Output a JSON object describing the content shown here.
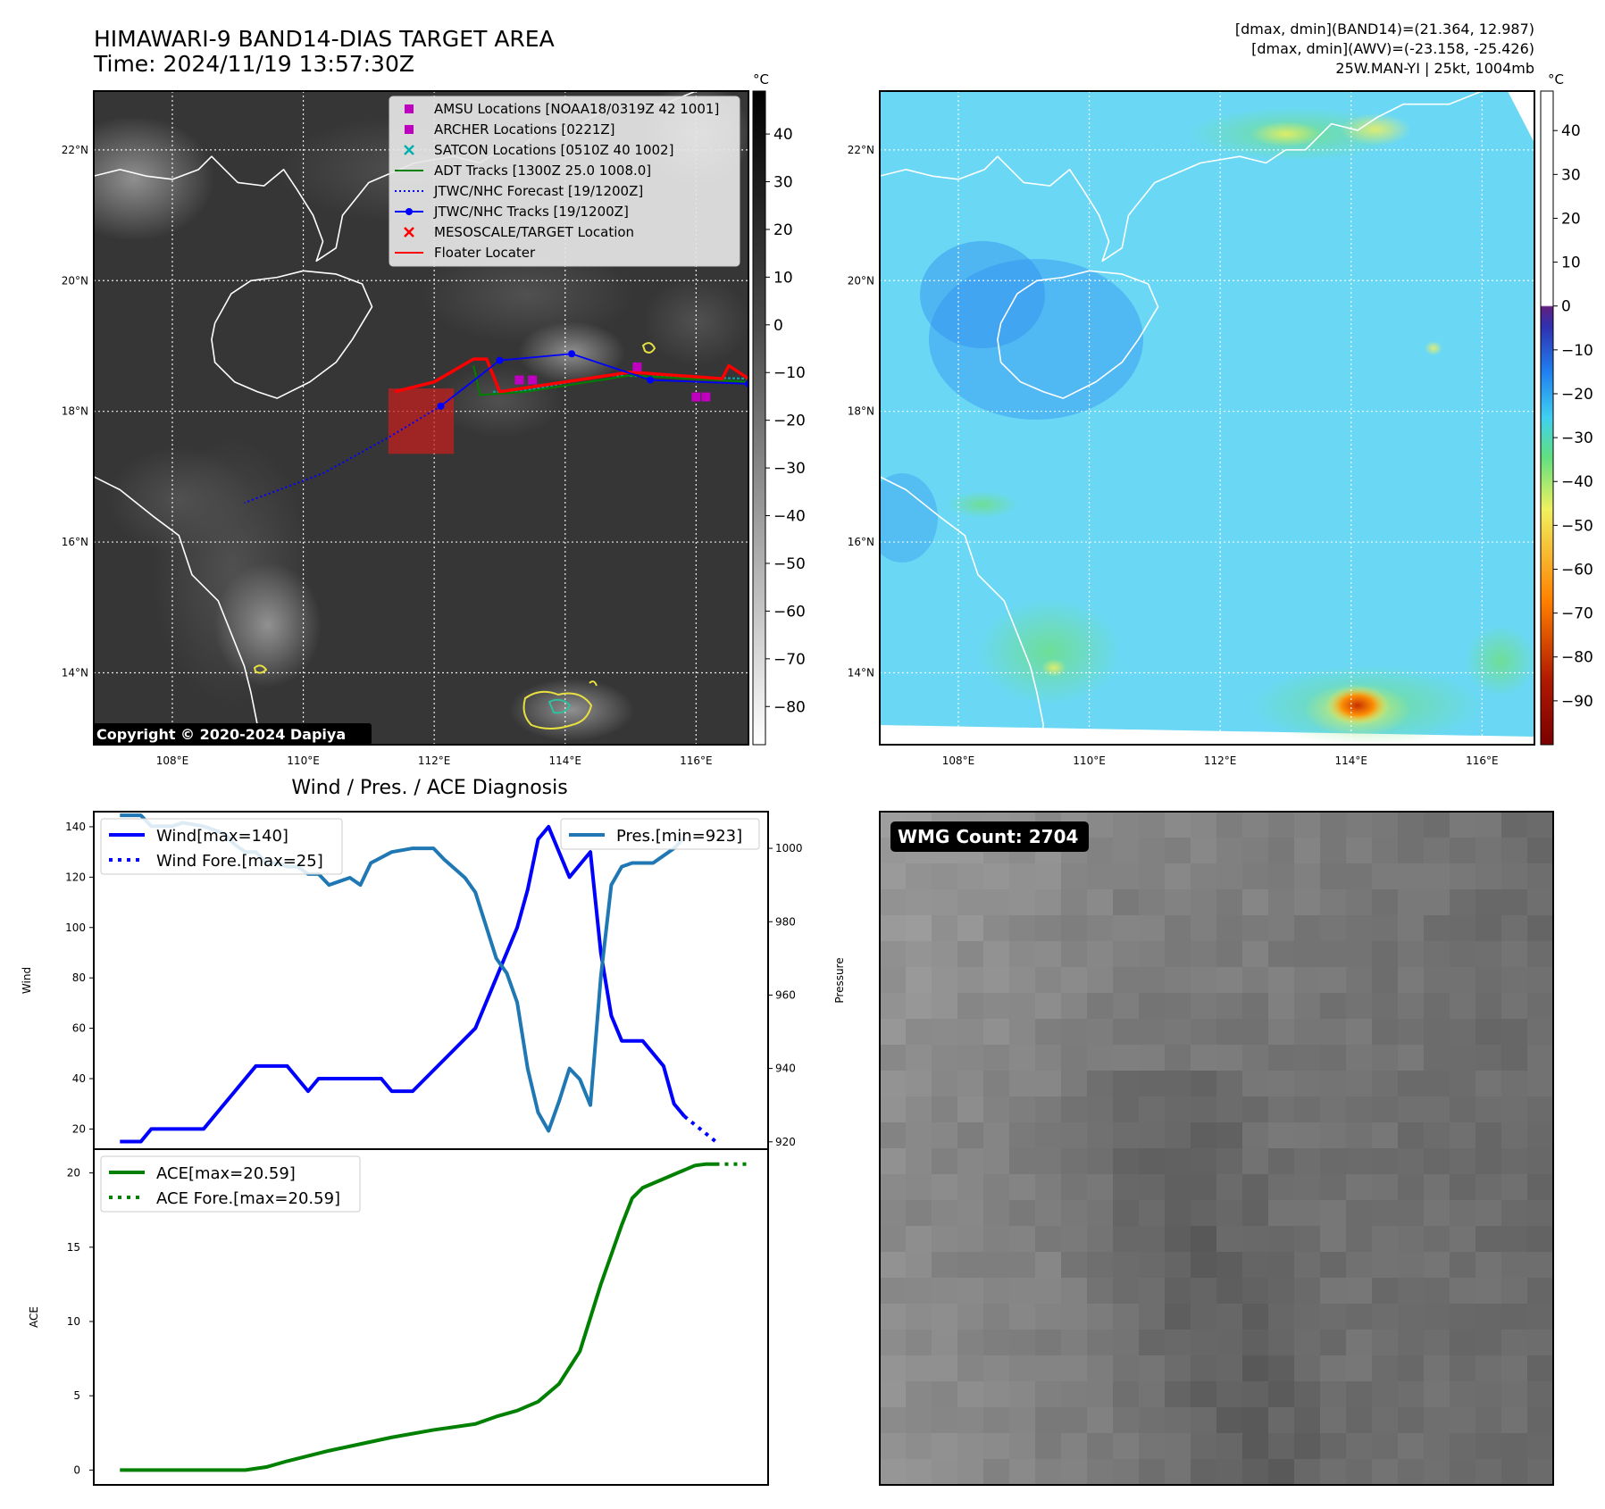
{
  "header": {
    "title": "HIMAWARI-9 BAND14-DIAS TARGET AREA",
    "time": "Time: 2024/11/19 13:57:30Z",
    "info1": "[dmax, dmin](BAND14)=(21.364, 12.987)",
    "info2": "[dmax, dmin](AWV)=(-23.158, -25.426)",
    "info3": "25W.MAN-YI | 25kt, 1004mb"
  },
  "copyright": "Copyright © 2020-2024 Dapiya",
  "unit": "°C",
  "map": {
    "lat_labels": [
      "22°N",
      "20°N",
      "18°N",
      "16°N",
      "14°N"
    ],
    "lon_labels": [
      "108°E",
      "110°E",
      "112°E",
      "114°E",
      "116°E"
    ],
    "lon_range": [
      106.8,
      116.8
    ],
    "lat_range": [
      12.9,
      22.9
    ],
    "legend": [
      {
        "label": "AMSU Locations [NOAA18/0319Z 42 1001]",
        "color": "#c000c0",
        "marker": "square"
      },
      {
        "label": "ARCHER Locations [0221Z]",
        "color": "#c000c0",
        "marker": "square"
      },
      {
        "label": "SATCON Locations [0510Z 40 1002]",
        "color": "#00b0b0",
        "marker": "x"
      },
      {
        "label": "ADT Tracks [1300Z 25.0 1008.0]",
        "color": "#008000",
        "marker": "line"
      },
      {
        "label": "JTWC/NHC Forecast [19/1200Z]",
        "color": "#0000ff",
        "marker": "dotted"
      },
      {
        "label": "JTWC/NHC Tracks [19/1200Z]",
        "color": "#0000ff",
        "marker": "line-dot"
      },
      {
        "label": "MESOSCALE/TARGET Location",
        "color": "#ff0000",
        "marker": "x"
      },
      {
        "label": "Floater Locater",
        "color": "#ff0000",
        "marker": "line"
      }
    ],
    "jtwc_track": [
      [
        116.8,
        18.42
      ],
      [
        115.3,
        18.48
      ],
      [
        114.1,
        18.88
      ],
      [
        113.0,
        18.78
      ],
      [
        112.1,
        18.08
      ]
    ],
    "jtwc_forecast": [
      [
        112.1,
        18.08
      ],
      [
        111.3,
        17.6
      ],
      [
        110.3,
        17.05
      ],
      [
        109.1,
        16.6
      ]
    ],
    "floater_track": [
      [
        116.8,
        18.5
      ],
      [
        116.5,
        18.7
      ],
      [
        116.4,
        18.5
      ],
      [
        115.0,
        18.6
      ],
      [
        113.0,
        18.3
      ],
      [
        112.8,
        18.8
      ],
      [
        112.6,
        18.8
      ],
      [
        112.0,
        18.45
      ],
      [
        111.4,
        18.3
      ]
    ],
    "adt_track": [
      [
        116.8,
        18.45
      ],
      [
        115.0,
        18.55
      ],
      [
        113.4,
        18.3
      ],
      [
        112.7,
        18.25
      ],
      [
        112.6,
        18.7
      ]
    ],
    "satcon_track": [
      [
        116.8,
        18.5
      ],
      [
        114.6,
        18.55
      ],
      [
        113.3,
        18.3
      ],
      [
        112.9,
        18.3
      ]
    ],
    "amsu_points": [
      [
        113.3,
        18.48
      ],
      [
        113.5,
        18.48
      ],
      [
        115.1,
        18.68
      ],
      [
        116.0,
        18.22
      ],
      [
        116.15,
        18.22
      ]
    ],
    "target_box": {
      "lon": [
        111.3,
        112.3
      ],
      "lat": [
        17.35,
        18.35
      ]
    }
  },
  "colorbar_left": {
    "ticks": [
      "40",
      "30",
      "20",
      "10",
      "0",
      "−10",
      "−20",
      "−30",
      "−40",
      "−50",
      "−60",
      "−70",
      "−80"
    ],
    "range": [
      -88,
      49
    ]
  },
  "colorbar_right": {
    "ticks": [
      "40",
      "30",
      "20",
      "10",
      "0",
      "−10",
      "−20",
      "−30",
      "−40",
      "−50",
      "−60",
      "−70",
      "−80",
      "−90"
    ],
    "range": [
      -100,
      49
    ]
  },
  "chart_data": {
    "type": "line",
    "title": "Wind / Pres. / ACE Diagnosis",
    "top": {
      "ylabel": "Wind",
      "y2label": "Pressure",
      "ylim": [
        12,
        146
      ],
      "y2lim": [
        918,
        1010
      ],
      "yticks": [
        "140",
        "120",
        "100",
        "80",
        "60",
        "40",
        "20"
      ],
      "y2ticks": [
        "1000",
        "980",
        "960",
        "940",
        "920"
      ],
      "series": [
        {
          "name": "Wind[max=140]",
          "color": "#0000ff",
          "values": [
            [
              0,
              15
            ],
            [
              2,
              15
            ],
            [
              3,
              20
            ],
            [
              8,
              20
            ],
            [
              13,
              45
            ],
            [
              16,
              45
            ],
            [
              18,
              35
            ],
            [
              19,
              40
            ],
            [
              25,
              40
            ],
            [
              26,
              35
            ],
            [
              28,
              35
            ],
            [
              34,
              60
            ],
            [
              36,
              80
            ],
            [
              38,
              100
            ],
            [
              39,
              115
            ],
            [
              40,
              135
            ],
            [
              41,
              140
            ],
            [
              43,
              120
            ],
            [
              45,
              130
            ],
            [
              46,
              90
            ],
            [
              47,
              65
            ],
            [
              48,
              55
            ],
            [
              50,
              55
            ],
            [
              52,
              45
            ],
            [
              53,
              30
            ],
            [
              54,
              25
            ]
          ]
        },
        {
          "name": "Wind Fore.[max=25]",
          "color": "#0000ff",
          "dashed": true,
          "values": [
            [
              54,
              25
            ],
            [
              57,
              15
            ]
          ]
        },
        {
          "name": "Pres.[min=923]",
          "color": "#1f77b4",
          "axis": "right",
          "values": [
            [
              0,
              1009
            ],
            [
              2,
              1009
            ],
            [
              3,
              1006
            ],
            [
              5,
              1006
            ],
            [
              6,
              1007
            ],
            [
              8,
              1006
            ],
            [
              9,
              1005
            ],
            [
              10,
              1004
            ],
            [
              11,
              1001
            ],
            [
              12,
              999
            ],
            [
              13,
              999
            ],
            [
              14,
              996
            ],
            [
              15,
              996
            ],
            [
              16,
              995
            ],
            [
              17,
              995
            ],
            [
              18,
              993
            ],
            [
              19,
              993
            ],
            [
              20,
              990
            ],
            [
              21,
              991
            ],
            [
              22,
              992
            ],
            [
              23,
              990
            ],
            [
              24,
              996
            ],
            [
              26,
              999
            ],
            [
              28,
              1000
            ],
            [
              30,
              1000
            ],
            [
              31,
              997
            ],
            [
              33,
              992
            ],
            [
              34,
              988
            ],
            [
              36,
              970
            ],
            [
              37,
              966
            ],
            [
              38,
              958
            ],
            [
              39,
              940
            ],
            [
              40,
              928
            ],
            [
              41,
              923
            ],
            [
              42,
              931
            ],
            [
              43,
              940
            ],
            [
              44,
              937
            ],
            [
              45,
              930
            ],
            [
              46,
              965
            ],
            [
              47,
              990
            ],
            [
              48,
              995
            ],
            [
              49,
              996
            ],
            [
              50,
              996
            ],
            [
              51,
              996
            ],
            [
              52,
              998
            ],
            [
              53,
              1000
            ],
            [
              54,
              1003
            ]
          ]
        }
      ]
    },
    "bottom": {
      "ylabel": "ACE",
      "ylim": [
        -1,
        21.6
      ],
      "yticks": [
        "20",
        "15",
        "10",
        "5",
        "0"
      ],
      "series": [
        {
          "name": "ACE[max=20.59]",
          "color": "#008000",
          "values": [
            [
              0,
              0
            ],
            [
              12,
              0
            ],
            [
              14,
              0.2
            ],
            [
              16,
              0.6
            ],
            [
              20,
              1.3
            ],
            [
              22,
              1.6
            ],
            [
              26,
              2.2
            ],
            [
              30,
              2.7
            ],
            [
              34,
              3.1
            ],
            [
              36,
              3.6
            ],
            [
              38,
              4.0
            ],
            [
              40,
              4.6
            ],
            [
              42,
              5.8
            ],
            [
              44,
              8.0
            ],
            [
              46,
              12.5
            ],
            [
              48,
              16.5
            ],
            [
              49,
              18.3
            ],
            [
              50,
              19.0
            ],
            [
              52,
              19.6
            ],
            [
              54,
              20.2
            ],
            [
              55,
              20.5
            ],
            [
              56,
              20.59
            ],
            [
              57,
              20.59
            ]
          ]
        },
        {
          "name": "ACE Fore.[max=20.59]",
          "color": "#008000",
          "dashed": true,
          "values": [
            [
              57,
              20.59
            ],
            [
              60,
              20.59
            ]
          ]
        }
      ]
    },
    "x_range": [
      -2.5,
      62
    ]
  },
  "wmg": {
    "label": "WMG Count: 2704"
  }
}
